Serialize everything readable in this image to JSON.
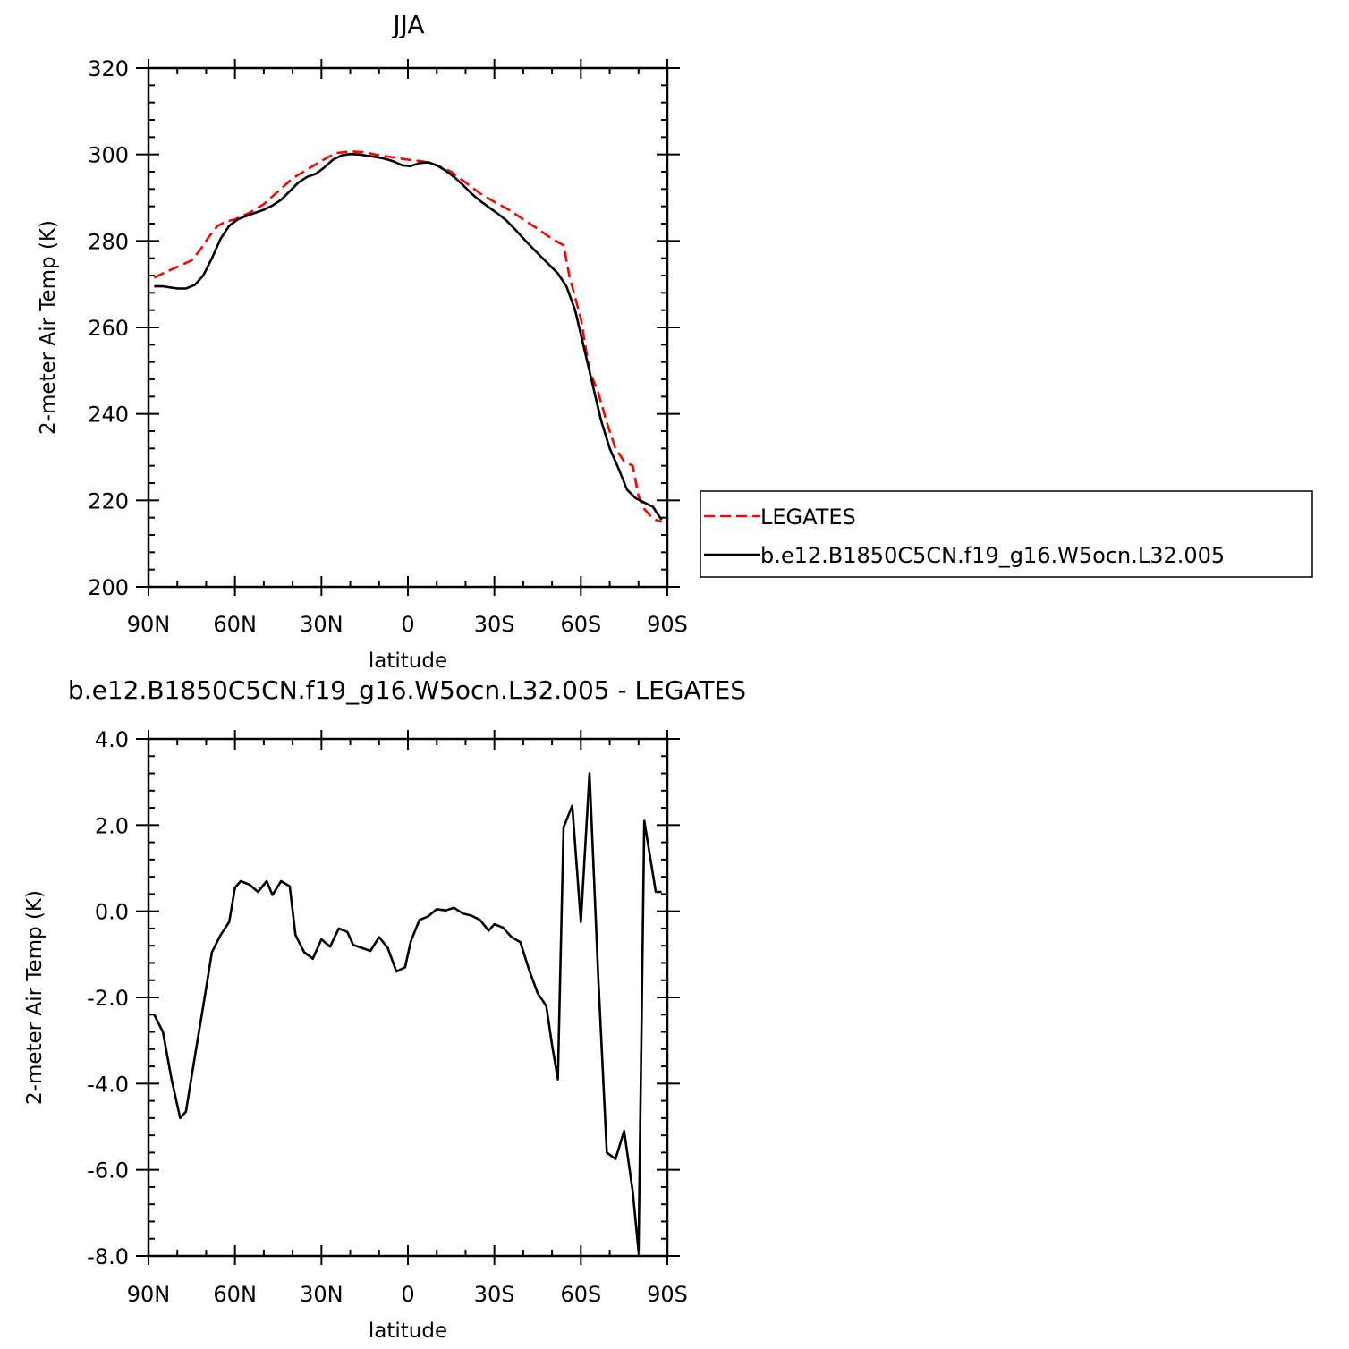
{
  "chart_data": [
    {
      "type": "line",
      "title": "JJA",
      "xlabel": "latitude",
      "ylabel": "2-meter Air Temp (K)",
      "xlim": [
        90,
        -90
      ],
      "ylim": [
        200,
        320
      ],
      "x_tick_values": [
        90,
        60,
        30,
        0,
        -30,
        -60,
        -90
      ],
      "x_tick_labels": [
        "90N",
        "60N",
        "30N",
        "0",
        "30S",
        "60S",
        "90S"
      ],
      "y_tick_values": [
        200,
        220,
        240,
        260,
        280,
        300,
        320
      ],
      "y_tick_labels": [
        "200",
        "220",
        "240",
        "260",
        "280",
        "300",
        "320"
      ],
      "legend": {
        "placement": "right"
      },
      "series": [
        {
          "name": "LEGATES",
          "color": "#ff0000",
          "style": "dashed",
          "x": [
            88,
            85,
            80,
            75,
            72,
            69,
            66,
            63,
            60,
            55,
            50,
            45,
            40,
            35,
            30,
            25,
            20,
            15,
            10,
            5,
            0,
            -5,
            -10,
            -15,
            -20,
            -25,
            -30,
            -35,
            -40,
            -45,
            -50,
            -54,
            -56,
            -60,
            -63,
            -66,
            -69,
            -72,
            -75,
            -78,
            -80,
            -82,
            -84,
            -86,
            -88
          ],
          "y": [
            271.5,
            272.5,
            274,
            275.5,
            278,
            281,
            283.5,
            284.5,
            285,
            286.5,
            288.5,
            291.5,
            294.5,
            296.5,
            298.5,
            300.3,
            300.7,
            300.5,
            299.8,
            299.3,
            298.8,
            298.4,
            297.5,
            296,
            293.5,
            291,
            289,
            287.2,
            285,
            282.8,
            280.5,
            279,
            272,
            262,
            250,
            245,
            238,
            232,
            229,
            228,
            221,
            218,
            216.5,
            215.5,
            215
          ]
        },
        {
          "name": "b.e12.B1850C5CN.f19_g16.W5ocn.L32.005",
          "color": "#000000",
          "style": "solid",
          "x": [
            88,
            85,
            80,
            77,
            74,
            71,
            68,
            65,
            62,
            59,
            56,
            53,
            50,
            47,
            44,
            41,
            38,
            35,
            32,
            29,
            26,
            23,
            20,
            17,
            14,
            11,
            8,
            5,
            2,
            -1,
            -4,
            -7,
            -10,
            -13,
            -16,
            -19,
            -22,
            -25,
            -28,
            -31,
            -34,
            -37,
            -40,
            -43,
            -46,
            -49,
            -52,
            -55,
            -58,
            -61,
            -64,
            -67,
            -70,
            -73,
            -76,
            -79,
            -82,
            -85,
            -88
          ],
          "y": [
            269.5,
            269.5,
            269,
            269,
            269.8,
            272,
            276,
            280.5,
            283.5,
            285,
            285.8,
            286.5,
            287.2,
            288.2,
            289.5,
            291.5,
            293.5,
            294.8,
            295.5,
            297,
            298.8,
            299.8,
            300.1,
            300,
            299.7,
            299.4,
            299,
            298.4,
            297.5,
            297.3,
            298,
            298.2,
            297.5,
            296.3,
            294.8,
            293,
            291,
            289.3,
            287.8,
            286.4,
            284.8,
            282.8,
            280.6,
            278.5,
            276.5,
            274.5,
            272.5,
            269.5,
            264,
            255.5,
            247,
            238.5,
            232,
            227.5,
            222.5,
            220.5,
            219.5,
            218.5,
            215.5
          ]
        }
      ]
    },
    {
      "type": "line",
      "title": "b.e12.B1850C5CN.f19_g16.W5ocn.L32.005 - LEGATES",
      "xlabel": "latitude",
      "ylabel": "2-meter Air Temp (K)",
      "xlim": [
        90,
        -90
      ],
      "ylim": [
        -8,
        4
      ],
      "x_tick_values": [
        90,
        60,
        30,
        0,
        -30,
        -60,
        -90
      ],
      "x_tick_labels": [
        "90N",
        "60N",
        "30N",
        "0",
        "30S",
        "60S",
        "90S"
      ],
      "y_tick_values": [
        -8,
        -6,
        -4,
        -2,
        0,
        2,
        4
      ],
      "y_tick_labels": [
        "-8.0",
        "-6.0",
        "-4.0",
        "-2.0",
        "0.0",
        "2.0",
        "4.0"
      ],
      "series": [
        {
          "color": "#000000",
          "style": "solid",
          "x": [
            88,
            85,
            82,
            79,
            77,
            74,
            71,
            68,
            65,
            62,
            60,
            58,
            55,
            52,
            49,
            47,
            44,
            41,
            39,
            36,
            33,
            30,
            27,
            24,
            21,
            19,
            16,
            13,
            10,
            7,
            4,
            1,
            -1,
            -4,
            -7,
            -10,
            -13,
            -16,
            -19,
            -22,
            -25,
            -28,
            -30,
            -33,
            -36,
            -39,
            -42,
            -45,
            -48,
            -50,
            -52,
            -54,
            -57,
            -60,
            -63,
            -66,
            -69,
            -72,
            -75,
            -78,
            -80,
            -82,
            -86,
            -88
          ],
          "y": [
            -2.4,
            -2.8,
            -3.9,
            -4.8,
            -4.65,
            -3.4,
            -2.2,
            -0.95,
            -0.55,
            -0.25,
            0.55,
            0.7,
            0.62,
            0.45,
            0.7,
            0.38,
            0.7,
            0.58,
            -0.55,
            -0.95,
            -1.1,
            -0.65,
            -0.82,
            -0.4,
            -0.48,
            -0.78,
            -0.85,
            -0.92,
            -0.6,
            -0.85,
            -1.4,
            -1.3,
            -0.7,
            -0.2,
            -0.12,
            0.05,
            0.02,
            0.08,
            -0.05,
            -0.1,
            -0.2,
            -0.45,
            -0.3,
            -0.38,
            -0.6,
            -0.72,
            -1.35,
            -1.9,
            -2.2,
            -3.1,
            -3.9,
            1.95,
            2.45,
            -0.25,
            3.2,
            -1.5,
            -5.6,
            -5.75,
            -5.1,
            -6.5,
            -7.9,
            2.1,
            0.45,
            0.45
          ]
        }
      ]
    }
  ]
}
